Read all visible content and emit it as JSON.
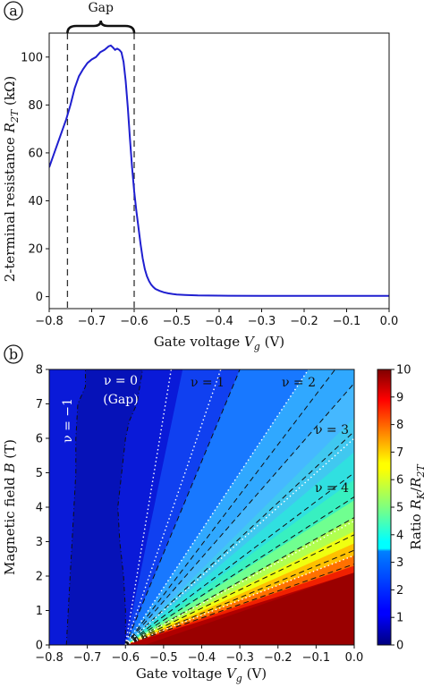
{
  "chart_data": [
    {
      "type": "line",
      "panel_label": "a",
      "xlabel_main": "Gate voltage ",
      "xlabel_var": "V",
      "xlabel_sub": "g",
      "xlabel_unit": " (V)",
      "ylabel_main": "2-terminal resistance ",
      "ylabel_var": "R",
      "ylabel_sub": "2T",
      "ylabel_unit": " (kΩ)",
      "xlim": [
        -0.8,
        0.0
      ],
      "ylim": [
        -5,
        110
      ],
      "x_ticks": [
        -0.8,
        -0.7,
        -0.6,
        -0.5,
        -0.4,
        -0.3,
        -0.2,
        -0.1,
        0.0
      ],
      "x_tick_labels": [
        "−0.8",
        "−0.7",
        "−0.6",
        "−0.5",
        "−0.4",
        "−0.3",
        "−0.2",
        "−0.1",
        "0.0"
      ],
      "y_ticks": [
        0,
        20,
        40,
        60,
        80,
        100
      ],
      "y_tick_labels": [
        "0",
        "20",
        "40",
        "60",
        "80",
        "100"
      ],
      "grid": false,
      "line_color": "#1f1fd0",
      "series": [
        {
          "x": [
            -0.8,
            -0.79,
            -0.78,
            -0.77,
            -0.76,
            -0.75,
            -0.74,
            -0.73,
            -0.72,
            -0.71,
            -0.7,
            -0.69,
            -0.68,
            -0.67,
            -0.66,
            -0.655,
            -0.65,
            -0.645,
            -0.64,
            -0.635,
            -0.63,
            -0.625,
            -0.62,
            -0.615,
            -0.61,
            -0.605,
            -0.6,
            -0.595,
            -0.59,
            -0.585,
            -0.58,
            -0.575,
            -0.57,
            -0.565,
            -0.56,
            -0.555,
            -0.55,
            -0.54,
            -0.53,
            -0.52,
            -0.51,
            -0.5,
            -0.48,
            -0.45,
            -0.4,
            -0.3,
            -0.2,
            -0.1,
            0.0
          ],
          "y": [
            54,
            59,
            64,
            69,
            74,
            80,
            87,
            92,
            95,
            97.5,
            99,
            100,
            102,
            103,
            104.5,
            104.8,
            104,
            103,
            103.5,
            103,
            102,
            98,
            90,
            79,
            66,
            54,
            44,
            36,
            29,
            22,
            16,
            11.5,
            8.5,
            6.5,
            5,
            4,
            3.2,
            2.4,
            1.8,
            1.4,
            1.1,
            0.9,
            0.7,
            0.5,
            0.4,
            0.3,
            0.3,
            0.3,
            0.3
          ]
        }
      ],
      "vlines": [
        -0.757,
        -0.6
      ],
      "annotations": [
        {
          "text": "Gap",
          "x1": -0.757,
          "x2": -0.6
        }
      ]
    },
    {
      "type": "heatmap",
      "panel_label": "b",
      "xlabel_main": "Gate voltage ",
      "xlabel_var": "V",
      "xlabel_sub": "g",
      "xlabel_unit": " (V)",
      "ylabel_main": "Magnetic field ",
      "ylabel_var": "B",
      "ylabel_unit": " (T)",
      "xlim": [
        -0.8,
        0.0
      ],
      "ylim": [
        0,
        8
      ],
      "x_ticks": [
        -0.8,
        -0.7,
        -0.6,
        -0.5,
        -0.4,
        -0.3,
        -0.2,
        -0.1,
        0.0
      ],
      "x_tick_labels": [
        "−0.8",
        "−0.7",
        "−0.6",
        "−0.5",
        "−0.4",
        "−0.3",
        "−0.2",
        "−0.1",
        "0.0"
      ],
      "y_ticks": [
        0,
        1,
        2,
        3,
        4,
        5,
        6,
        7,
        8
      ],
      "y_tick_labels": [
        "0",
        "1",
        "2",
        "3",
        "4",
        "5",
        "6",
        "7",
        "8"
      ],
      "colorbar": {
        "label_main": "Ratio ",
        "label_var": "R",
        "label_sub_k": "K",
        "label_sep": "/",
        "label_sub_2t": "2T",
        "range": [
          0,
          10
        ],
        "ticks": [
          0,
          1,
          2,
          3,
          4,
          5,
          6,
          7,
          8,
          9,
          10
        ],
        "tick_labels": [
          "0",
          "1",
          "2",
          "3",
          "4",
          "5",
          "6",
          "7",
          "8",
          "9",
          "10"
        ],
        "colormap": "jet"
      },
      "annotations": [
        {
          "id": "nu-minus-1",
          "nu_text": "ν = −1",
          "x": -0.76,
          "y": 6.2
        },
        {
          "id": "nu-0",
          "nu_text": "ν = 0",
          "sub_text": "(Gap)",
          "x": -0.645,
          "y": 7.55
        },
        {
          "id": "nu-1",
          "nu_text": "ν = 1",
          "x": -0.4,
          "y": 7.45
        },
        {
          "id": "nu-2",
          "nu_text": "ν = 2",
          "x": -0.22,
          "y": 7.45
        },
        {
          "id": "nu-3",
          "nu_text": "ν = 3",
          "x": -0.06,
          "y": 6.0
        },
        {
          "id": "nu-4",
          "nu_text": "ν = 4",
          "x": -0.09,
          "y": 4.6
        }
      ],
      "fan_origin": [
        -0.6,
        0
      ],
      "dotted_lines_end": [
        [
          -0.48,
          8
        ],
        [
          -0.35,
          8
        ],
        [
          -0.12,
          8
        ],
        [
          0.0,
          6.0
        ],
        [
          0.0,
          3.6
        ],
        [
          0.0,
          2.6
        ]
      ],
      "dashed_contours_end": [
        [
          -0.3,
          8
        ],
        [
          -0.05,
          8
        ],
        [
          0.0,
          7.6
        ],
        [
          0.0,
          6.2
        ],
        [
          0.0,
          5.0
        ],
        [
          0.0,
          4.3
        ],
        [
          0.0,
          3.7
        ],
        [
          0.0,
          3.2
        ],
        [
          0.0,
          2.75
        ],
        [
          0.0,
          2.35
        ]
      ],
      "gap_left_boundary": [
        [
          -0.755,
          0
        ],
        [
          -0.75,
          1
        ],
        [
          -0.745,
          2
        ],
        [
          -0.74,
          3
        ],
        [
          -0.735,
          4
        ],
        [
          -0.73,
          5
        ],
        [
          -0.73,
          6
        ],
        [
          -0.725,
          7
        ],
        [
          -0.705,
          7.5
        ],
        [
          -0.705,
          8
        ]
      ],
      "gap_right_boundary": [
        [
          -0.6,
          0
        ],
        [
          -0.6,
          1
        ],
        [
          -0.605,
          2
        ],
        [
          -0.615,
          3
        ],
        [
          -0.62,
          4
        ],
        [
          -0.61,
          5
        ],
        [
          -0.6,
          6
        ],
        [
          -0.59,
          6.5
        ],
        [
          -0.57,
          7
        ],
        [
          -0.555,
          8
        ]
      ]
    }
  ]
}
